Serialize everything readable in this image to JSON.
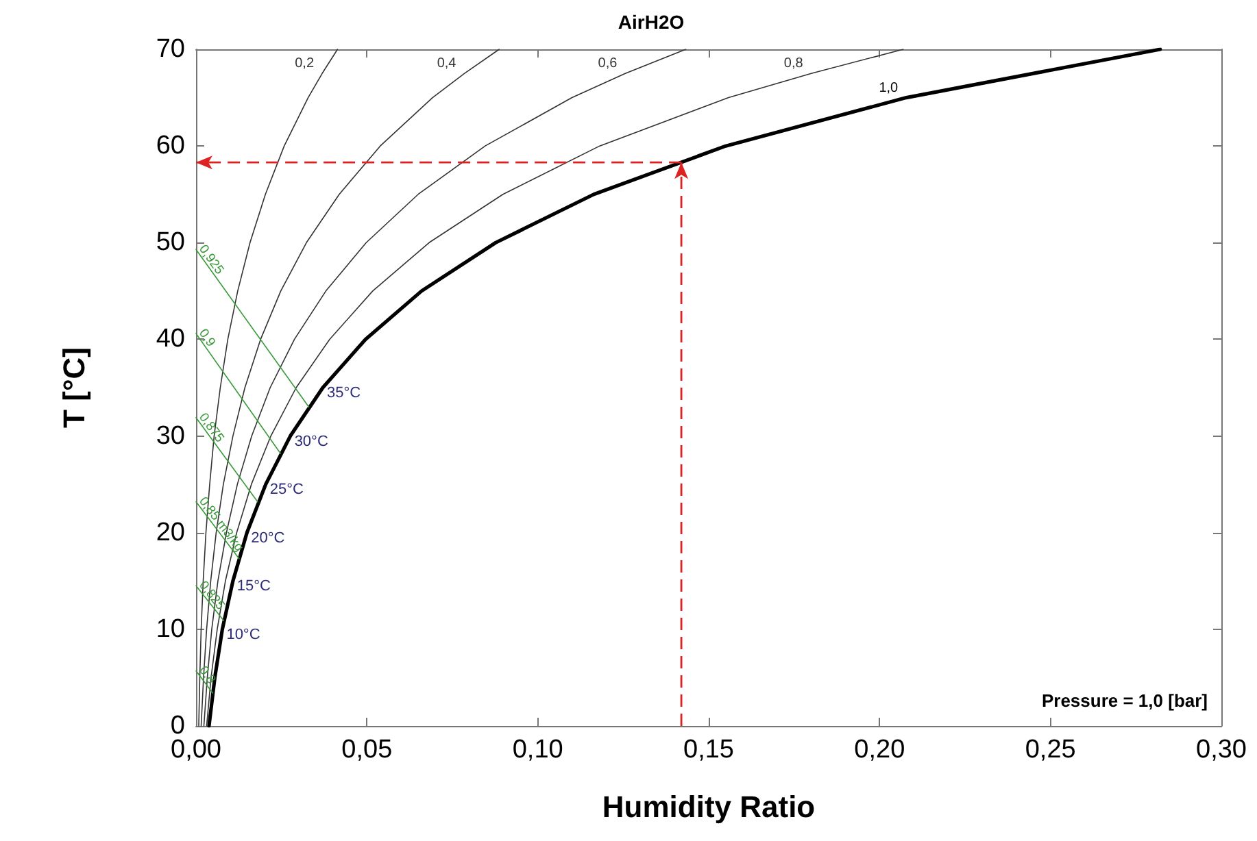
{
  "chart_data": {
    "type": "line",
    "title": "AirH2O",
    "xlabel": "Humidity Ratio",
    "ylabel": "T [°C]",
    "xlim": [
      0,
      0.3
    ],
    "xticks": [
      {
        "value": 0,
        "label": "0,00"
      },
      {
        "value": 0.05,
        "label": "0,05"
      },
      {
        "value": 0.1,
        "label": "0,10"
      },
      {
        "value": 0.15,
        "label": "0,15"
      },
      {
        "value": 0.2,
        "label": "0,20"
      },
      {
        "value": 0.25,
        "label": "0,25"
      },
      {
        "value": 0.3,
        "label": "0,30"
      }
    ],
    "ylim": [
      0,
      70
    ],
    "yticks": [
      0,
      10,
      20,
      30,
      40,
      50,
      60,
      70
    ],
    "grid": false,
    "legend": false,
    "marker": "none",
    "series": [
      {
        "name": "1,0",
        "color": "#000000",
        "x": [
          0.0038,
          0.0055,
          0.0077,
          0.0108,
          0.0149,
          0.0204,
          0.0276,
          0.0371,
          0.0496,
          0.066,
          0.0877,
          0.1164,
          0.155,
          0.2078,
          0.2821
        ],
        "values": [
          0,
          5,
          10,
          15,
          20,
          25,
          30,
          35,
          40,
          45,
          50,
          55,
          60,
          65,
          70
        ]
      },
      {
        "name": "0,8",
        "color": "#333333",
        "x": [
          0.0031,
          0.0044,
          0.0062,
          0.0086,
          0.0119,
          0.0162,
          0.0219,
          0.0293,
          0.0391,
          0.0517,
          0.0682,
          0.0898,
          0.1181,
          0.1558,
          0.18,
          0.2069
        ],
        "values": [
          0,
          5,
          10,
          15,
          20,
          25,
          30,
          35,
          40,
          45,
          50,
          55,
          60,
          65,
          67.5,
          70
        ]
      },
      {
        "name": "0,6",
        "color": "#333333",
        "x": [
          0.0023,
          0.0033,
          0.0046,
          0.0064,
          0.0089,
          0.0121,
          0.0163,
          0.0217,
          0.0288,
          0.038,
          0.0498,
          0.065,
          0.0846,
          0.11,
          0.1256,
          0.1433
        ],
        "values": [
          0,
          5,
          10,
          15,
          20,
          25,
          30,
          35,
          40,
          45,
          50,
          55,
          60,
          65,
          67.5,
          70
        ]
      },
      {
        "name": "0,4",
        "color": "#333333",
        "x": [
          0.0015,
          0.0022,
          0.0031,
          0.0043,
          0.0059,
          0.008,
          0.0108,
          0.0143,
          0.0189,
          0.0248,
          0.0323,
          0.0419,
          0.0539,
          0.0692,
          0.0785,
          0.0887
        ],
        "values": [
          0,
          5,
          10,
          15,
          20,
          25,
          30,
          35,
          40,
          45,
          50,
          55,
          60,
          65,
          67.5,
          70
        ]
      },
      {
        "name": "0,2",
        "color": "#333333",
        "x": [
          0.0008,
          0.0011,
          0.0015,
          0.0021,
          0.0029,
          0.004,
          0.0053,
          0.0071,
          0.0093,
          0.0122,
          0.0158,
          0.0203,
          0.0258,
          0.0328,
          0.0369,
          0.0414
        ],
        "values": [
          0,
          5,
          10,
          15,
          20,
          25,
          30,
          35,
          40,
          45,
          50,
          55,
          60,
          65,
          67.5,
          70
        ]
      },
      {
        "name": "0,925",
        "color": "#3a9a3a",
        "x": [
          0,
          0.033
        ],
        "values": [
          49.3,
          33
        ]
      },
      {
        "name": "0,9",
        "color": "#3a9a3a",
        "x": [
          0,
          0.0247
        ],
        "values": [
          40.6,
          28.2
        ]
      },
      {
        "name": "0,875",
        "color": "#3a9a3a",
        "x": [
          0,
          0.018
        ],
        "values": [
          31.9,
          23.2
        ]
      },
      {
        "name": "0,85 m3/kg",
        "color": "#3a9a3a",
        "x": [
          0,
          0.0126
        ],
        "values": [
          23.2,
          17.3
        ]
      },
      {
        "name": "0,825",
        "color": "#3a9a3a",
        "x": [
          0,
          0.0081
        ],
        "values": [
          14.5,
          10.9
        ]
      },
      {
        "name": "0,8",
        "color": "#3a9a3a",
        "x": [
          0,
          0.0049
        ],
        "values": [
          5.7,
          3.4
        ]
      }
    ],
    "ref_lines": [
      {
        "axis": "y",
        "value": 58.3,
        "color": "#dd2222",
        "line_style": "dashed"
      },
      {
        "axis": "x",
        "value": 0.142,
        "color": "#dd2222",
        "line_style": "dashed"
      }
    ],
    "annotations": [
      {
        "text": "35°C",
        "x": 0.0371,
        "y": 35
      },
      {
        "text": "30°C",
        "x": 0.0276,
        "y": 30
      },
      {
        "text": "25°C",
        "x": 0.0204,
        "y": 25
      },
      {
        "text": "20°C",
        "x": 0.0149,
        "y": 20
      },
      {
        "text": "15°C",
        "x": 0.0108,
        "y": 15
      },
      {
        "text": "10°C",
        "x": 0.0077,
        "y": 10
      },
      "Pressure = 1,0 [bar]"
    ]
  }
}
